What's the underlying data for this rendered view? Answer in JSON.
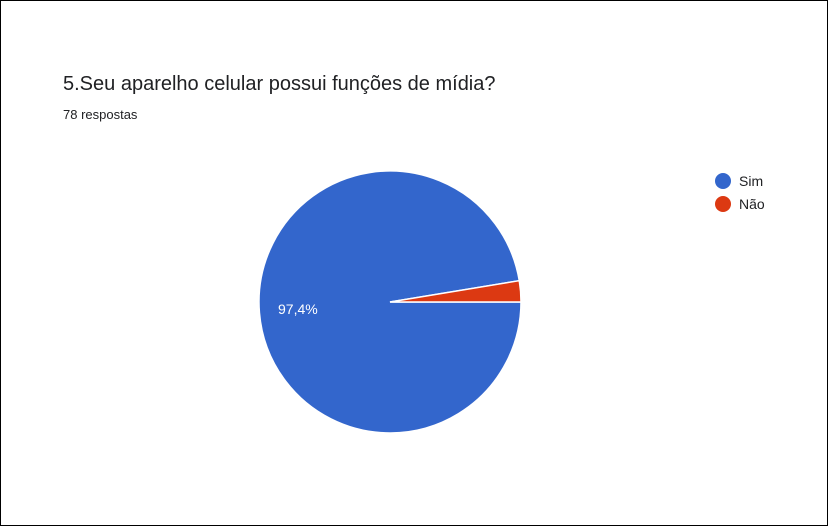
{
  "chart_data": {
    "type": "pie",
    "title": "5.Seu aparelho celular possui funções de mídia?",
    "subtitle": "78 respostas",
    "slices": [
      {
        "label": "Sim",
        "value": 97.4,
        "display": "97,4%",
        "color": "#3366cc"
      },
      {
        "label": "Não",
        "value": 2.6,
        "display": "",
        "color": "#dc3912"
      }
    ],
    "legend_position": "right"
  }
}
